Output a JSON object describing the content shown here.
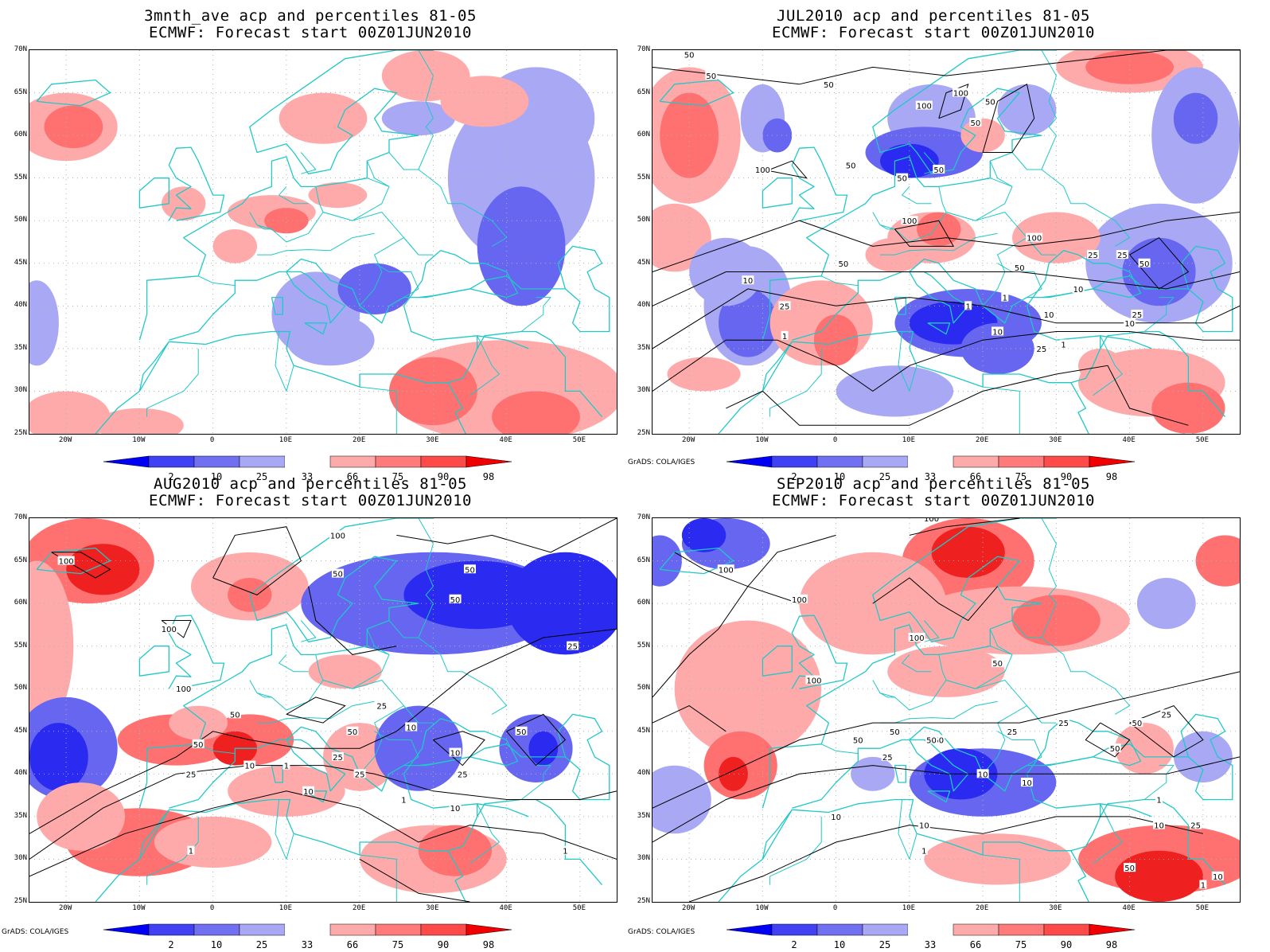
{
  "panels": [
    {
      "title_line1": "3mnth_ave acp and percentiles 81-05",
      "title_line2": "ECMWF: Forecast start 00Z01JUN2010",
      "credit": "",
      "contour_labels": []
    },
    {
      "title_line1": "JUL2010 acp and percentiles 81-05",
      "title_line2": "ECMWF: Forecast start 00Z01JUN2010",
      "credit": "GrADS: COLA/IGES",
      "contour_labels": [
        "50",
        "50",
        "50",
        "100",
        "100",
        "50",
        "50",
        "100",
        "50",
        "50",
        "50",
        "100",
        "100",
        "50",
        "25",
        "25",
        "50",
        "10",
        "10",
        "50",
        "25",
        "1",
        "10",
        "25",
        "1",
        "10",
        "25",
        "10",
        "1",
        "1",
        "1"
      ]
    },
    {
      "title_line1": "AUG2010 acp and percentiles 81-05",
      "title_line2": "ECMWF: Forecast start 00Z01JUN2010",
      "credit": "GrADS: COLA/IGES",
      "contour_labels": [
        "100",
        "100",
        "50",
        "50",
        "100",
        "50",
        "25",
        "100",
        "50",
        "50",
        "50",
        "25",
        "10",
        "10",
        "25",
        "25",
        "10",
        "1",
        "10",
        "50",
        "25",
        "25",
        "10",
        "1",
        "1",
        "1"
      ]
    },
    {
      "title_line1": "SEP2010 acp and percentiles 81-05",
      "title_line2": "ECMWF: Forecast start 00Z01JUN2010",
      "credit": "GrADS: COLA/IGES",
      "contour_labels": [
        "100",
        "100",
        "100",
        "100",
        "100",
        "50",
        "50",
        "25",
        "50",
        "25",
        "50",
        "50",
        "25",
        "50",
        "25",
        "50",
        "25",
        "10",
        "10",
        "10",
        "10",
        "1",
        "1",
        "25",
        "10",
        "50",
        "10",
        "1"
      ]
    }
  ],
  "lat_labels": [
    "70N",
    "65N",
    "60N",
    "55N",
    "50N",
    "45N",
    "40N",
    "35N",
    "30N",
    "25N"
  ],
  "lon_labels": [
    "20W",
    "10W",
    "0",
    "10E",
    "20E",
    "30E",
    "40E",
    "50E"
  ],
  "colorbar": {
    "labels": [
      "2",
      "10",
      "25",
      "33",
      "66",
      "75",
      "90",
      "98"
    ],
    "colors": [
      "#0000f5",
      "#4040f5",
      "#7070f0",
      "#a8a8f5",
      "#ffffff",
      "#ffaaaa",
      "#ff7a7a",
      "#ff4a4a",
      "#f00000"
    ]
  },
  "colors": {
    "coastline": "#20c8c8",
    "grid": "#b0b0b0",
    "contour": "#000000",
    "blue_strong": "#2a2af0",
    "blue_mid": "#6666f0",
    "blue_light": "#a8a8f5",
    "red_light": "#ffaaaa",
    "red_mid": "#ff7070",
    "red_strong": "#ee2020"
  }
}
